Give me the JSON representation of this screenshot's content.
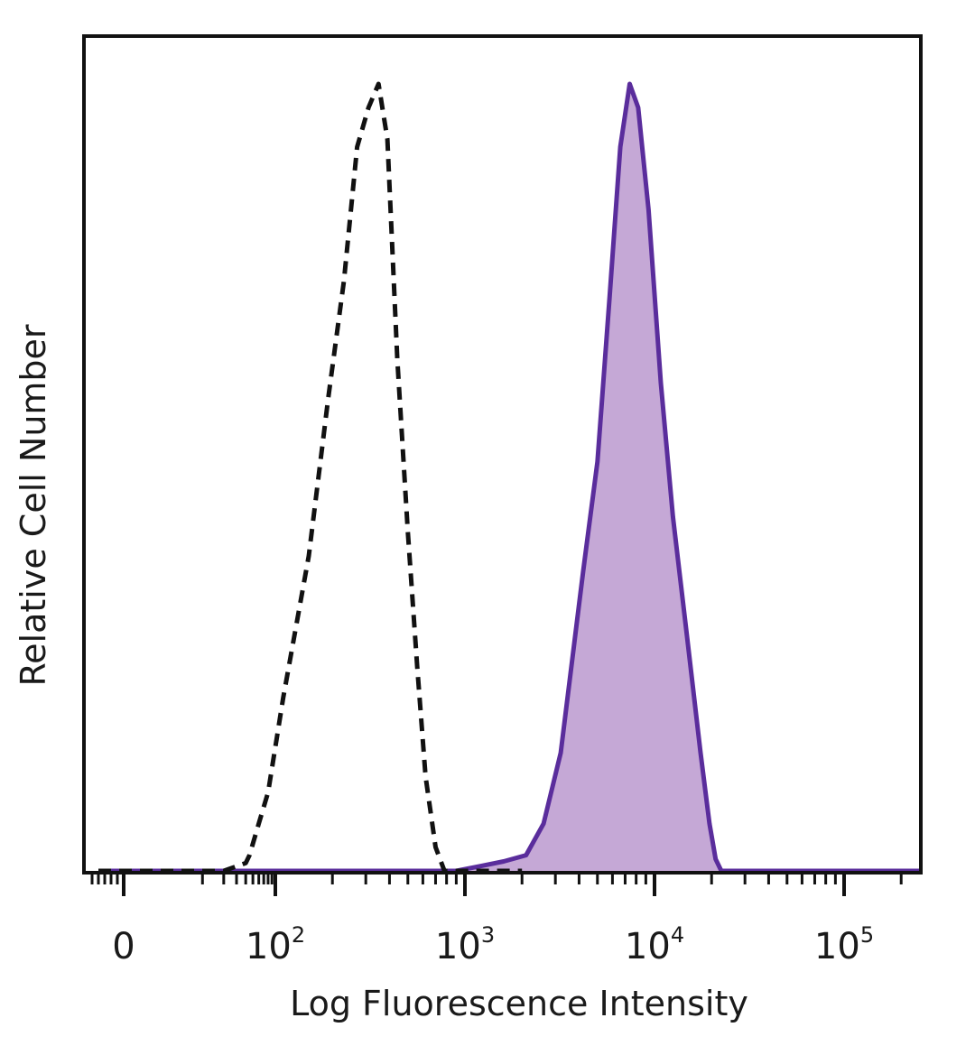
{
  "chart_data": {
    "type": "area",
    "title": "",
    "xlabel": "Log Fluorescence Intensity",
    "ylabel": "Relative Cell Number",
    "x_scale": "biexponential",
    "xlim": [
      -60,
      250000
    ],
    "ylim": [
      0,
      100
    ],
    "grid": false,
    "x_ticks": [
      {
        "label": "0",
        "base": "0",
        "exp": "",
        "value": 0
      },
      {
        "label": "10^2",
        "base": "10",
        "exp": "2",
        "value": 100
      },
      {
        "label": "10^3",
        "base": "10",
        "exp": "3",
        "value": 1000
      },
      {
        "label": "10^4",
        "base": "10",
        "exp": "4",
        "value": 10000
      },
      {
        "label": "10^5",
        "base": "10",
        "exp": "5",
        "value": 100000
      }
    ],
    "series": [
      {
        "style": "dashed",
        "color": "#111111",
        "fill": "none",
        "points": [
          [
            -40,
            0
          ],
          [
            20,
            0
          ],
          [
            40,
            1
          ],
          [
            45,
            2
          ],
          [
            60,
            6
          ],
          [
            80,
            10
          ],
          [
            110,
            22
          ],
          [
            150,
            40
          ],
          [
            190,
            60
          ],
          [
            230,
            75
          ],
          [
            270,
            92
          ],
          [
            310,
            97
          ],
          [
            350,
            100
          ],
          [
            390,
            93
          ],
          [
            440,
            65
          ],
          [
            500,
            43
          ],
          [
            560,
            26
          ],
          [
            620,
            12
          ],
          [
            700,
            3
          ],
          [
            780,
            0
          ],
          [
            2000,
            0
          ]
        ]
      },
      {
        "style": "solid",
        "color": "#5a2d9c",
        "fill": "#c5a8d6",
        "points": [
          [
            -40,
            0
          ],
          [
            900,
            0
          ],
          [
            1200,
            0.6
          ],
          [
            1600,
            1.2
          ],
          [
            2100,
            2
          ],
          [
            2600,
            6
          ],
          [
            3200,
            15
          ],
          [
            4200,
            38
          ],
          [
            5000,
            52
          ],
          [
            5800,
            73
          ],
          [
            6600,
            92
          ],
          [
            7400,
            100
          ],
          [
            8200,
            97
          ],
          [
            9300,
            84
          ],
          [
            10800,
            62
          ],
          [
            12500,
            45
          ],
          [
            14800,
            30
          ],
          [
            17500,
            15
          ],
          [
            19500,
            6
          ],
          [
            21000,
            1.5
          ],
          [
            22500,
            0
          ],
          [
            250000,
            0
          ]
        ]
      }
    ]
  }
}
